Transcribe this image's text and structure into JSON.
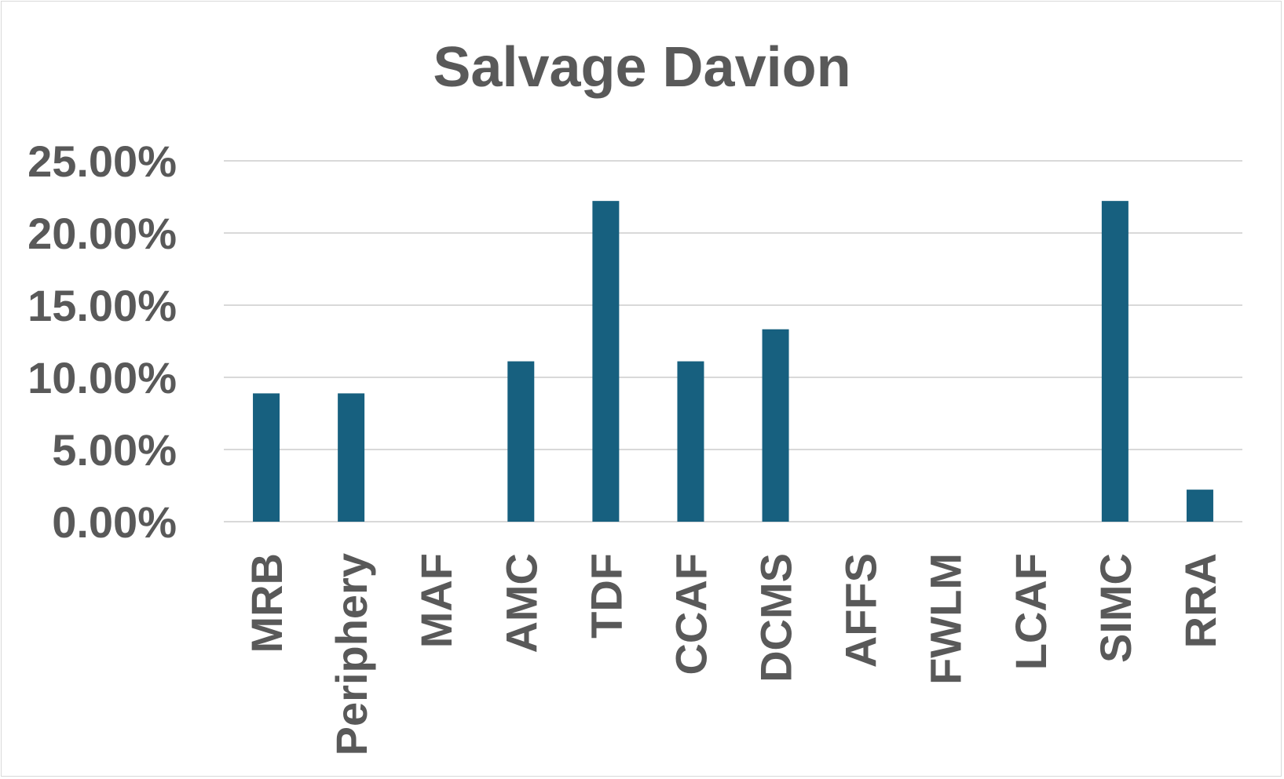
{
  "chart_data": {
    "type": "bar",
    "title": "Salvage Davion",
    "xlabel": "",
    "ylabel": "",
    "categories": [
      "MRB",
      "Periphery",
      "MAF",
      "AMC",
      "TDF",
      "CCAF",
      "DCMS",
      "AFFS",
      "FWLM",
      "LCAF",
      "SIMC",
      "RRA"
    ],
    "series": [
      {
        "values": [
          8.89,
          8.89,
          0,
          11.11,
          22.22,
          11.11,
          13.33,
          0,
          0,
          0,
          22.22,
          2.22
        ]
      }
    ],
    "ylim": [
      0,
      25
    ],
    "yticks": [
      "0.00%",
      "5.00%",
      "10.00%",
      "15.00%",
      "20.00%",
      "25.00%"
    ],
    "grid": true,
    "legend": "none",
    "bar_color": "#17607f",
    "grid_color": "#d9d9d9",
    "text_color": "#595959"
  }
}
